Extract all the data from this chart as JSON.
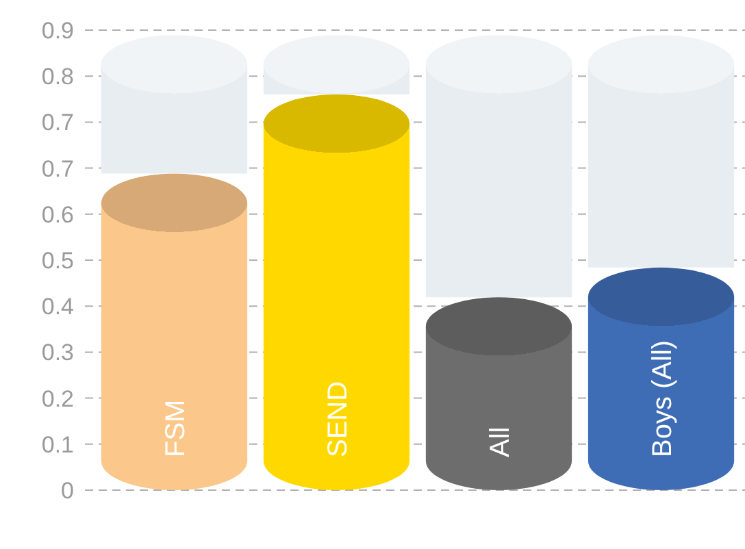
{
  "chart_data": {
    "type": "bar",
    "stacked": true,
    "categories": [
      "FSM",
      "SEND",
      "All",
      "Boys (All)"
    ],
    "series": [
      {
        "colors": [
          "#fbc78a",
          "#ffd800",
          "#6d6d6d",
          "#3f6db5"
        ],
        "values": [
          0.64,
          0.8,
          0.39,
          0.45
        ]
      },
      {
        "color": "#e8edf2",
        "values": [
          0.28,
          0.12,
          0.53,
          0.47
        ]
      }
    ],
    "ylim": [
      0,
      0.93
    ],
    "yticks": [
      0,
      {
        "value": 0.093,
        "label": "0.1"
      },
      {
        "value": 0.186,
        "label": "0.2"
      },
      {
        "value": 0.279,
        "label": "0.3"
      },
      {
        "value": 0.372,
        "label": "0.4"
      },
      {
        "value": 0.465,
        "label": "0.5"
      },
      {
        "value": 0.558,
        "label": "0.6"
      },
      {
        "value": 0.651,
        "label": "0.7"
      },
      {
        "value": 0.744,
        "label": "0.7"
      },
      {
        "value": 0.837,
        "label": "0.8"
      },
      {
        "value": 0.93,
        "label": "0.9"
      }
    ],
    "grid": "y",
    "line_style": "dashed"
  }
}
